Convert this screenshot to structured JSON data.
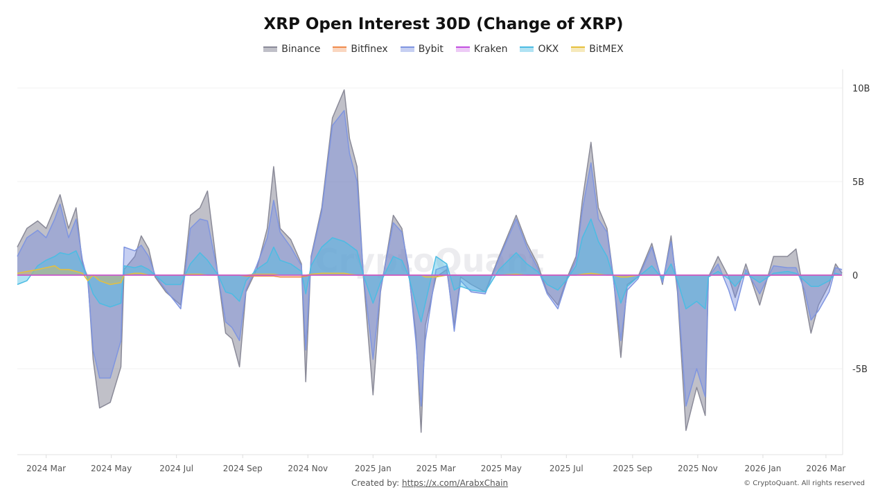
{
  "chart_data": {
    "type": "area",
    "title": "XRP Open Interest 30D (Change of XRP)",
    "xlabel": "",
    "ylabel": "",
    "y_unit": "B",
    "ylim": [
      -10,
      11
    ],
    "y_ticks": [
      {
        "v": 10,
        "label": "10B"
      },
      {
        "v": 5,
        "label": "5B"
      },
      {
        "v": 0,
        "label": "0"
      },
      {
        "v": -5,
        "label": "-5B"
      }
    ],
    "x_range": [
      "2024-02-03",
      "2026-03-16"
    ],
    "x_ticks": [
      {
        "d": "2024-03-01",
        "label": "2024 Mar"
      },
      {
        "d": "2024-05-01",
        "label": "2024 May"
      },
      {
        "d": "2024-07-01",
        "label": "2024 Jul"
      },
      {
        "d": "2024-09-01",
        "label": "2024 Sep"
      },
      {
        "d": "2024-11-01",
        "label": "2024 Nov"
      },
      {
        "d": "2025-01-01",
        "label": "2025 Jan"
      },
      {
        "d": "2025-03-01",
        "label": "2025 Mar"
      },
      {
        "d": "2025-05-01",
        "label": "2025 May"
      },
      {
        "d": "2025-07-01",
        "label": "2025 Jul"
      },
      {
        "d": "2025-09-01",
        "label": "2025 Sep"
      },
      {
        "d": "2025-11-01",
        "label": "2025 Nov"
      },
      {
        "d": "2026-01-01",
        "label": "2026 Jan"
      },
      {
        "d": "2026-03-01",
        "label": "2026 Mar"
      }
    ],
    "grid": true,
    "legend_position": "top",
    "y_axis_position": "right",
    "x": [
      "2024-02-03",
      "2024-02-12",
      "2024-02-22",
      "2024-03-01",
      "2024-03-09",
      "2024-03-14",
      "2024-03-22",
      "2024-03-29",
      "2024-04-04",
      "2024-04-09",
      "2024-04-14",
      "2024-04-20",
      "2024-04-30",
      "2024-05-10",
      "2024-05-13",
      "2024-05-23",
      "2024-05-29",
      "2024-06-05",
      "2024-06-11",
      "2024-06-21",
      "2024-07-05",
      "2024-07-14",
      "2024-07-23",
      "2024-07-30",
      "2024-08-09",
      "2024-08-16",
      "2024-08-22",
      "2024-08-29",
      "2024-09-04",
      "2024-09-14",
      "2024-09-24",
      "2024-09-30",
      "2024-10-06",
      "2024-10-16",
      "2024-10-26",
      "2024-10-30",
      "2024-11-04",
      "2024-11-14",
      "2024-11-24",
      "2024-12-05",
      "2024-12-10",
      "2024-12-17",
      "2024-12-23",
      "2025-01-01",
      "2025-01-08",
      "2025-01-20",
      "2025-01-28",
      "2025-02-03",
      "2025-02-10",
      "2025-02-15",
      "2025-02-19",
      "2025-03-01",
      "2025-03-11",
      "2025-03-18",
      "2025-03-24",
      "2025-04-03",
      "2025-04-16",
      "2025-04-29",
      "2025-05-15",
      "2025-05-25",
      "2025-06-04",
      "2025-06-13",
      "2025-06-23",
      "2025-07-02",
      "2025-07-10",
      "2025-07-16",
      "2025-07-24",
      "2025-07-31",
      "2025-08-08",
      "2025-08-14",
      "2025-08-21",
      "2025-08-27",
      "2025-09-06",
      "2025-09-19",
      "2025-09-29",
      "2025-10-07",
      "2025-10-13",
      "2025-10-21",
      "2025-10-31",
      "2025-11-08",
      "2025-11-11",
      "2025-11-20",
      "2025-11-30",
      "2025-12-06",
      "2025-12-16",
      "2025-12-29",
      "2026-01-11",
      "2026-01-24",
      "2026-02-01",
      "2026-02-09",
      "2026-02-15",
      "2026-02-22",
      "2026-03-04",
      "2026-03-10",
      "2026-03-16"
    ],
    "series": [
      {
        "name": "Binance",
        "color": "#8a8a98",
        "fill": "rgba(140,140,155,0.55)",
        "values": [
          1.5,
          2.5,
          2.9,
          2.5,
          3.6,
          4.3,
          2.5,
          3.6,
          0.6,
          -0.1,
          -4.5,
          -7.1,
          -6.8,
          -4.9,
          0.3,
          1.0,
          2.1,
          1.4,
          -0.1,
          -0.9,
          -1.6,
          3.2,
          3.6,
          4.5,
          -0.1,
          -3.1,
          -3.4,
          -4.9,
          -0.9,
          0.3,
          2.5,
          5.8,
          2.5,
          1.9,
          0.6,
          -5.7,
          1.0,
          3.6,
          8.4,
          9.9,
          7.3,
          5.8,
          -0.1,
          -6.4,
          -0.9,
          3.2,
          2.5,
          0.3,
          -3.1,
          -8.4,
          -2.7,
          -0.1,
          0.3,
          -2.7,
          -0.1,
          -0.5,
          -0.9,
          1.0,
          3.2,
          1.7,
          0.6,
          -0.9,
          -1.6,
          -0.1,
          1.0,
          4.0,
          7.1,
          3.6,
          2.5,
          -0.1,
          -4.4,
          -0.5,
          -0.1,
          1.7,
          -0.5,
          2.1,
          -0.9,
          -8.3,
          -6.0,
          -7.5,
          -0.1,
          1.0,
          -0.1,
          -1.2,
          0.6,
          -1.6,
          1.0,
          1.0,
          1.4,
          -1.2,
          -3.1,
          -1.6,
          -0.5,
          0.6,
          0.1
        ]
      },
      {
        "name": "Bitfinex",
        "color": "#f08a4b",
        "fill": "rgba(240,138,75,0.35)",
        "values": [
          0,
          0,
          0,
          0,
          0,
          0,
          0,
          0,
          0,
          0,
          0,
          0,
          0,
          0,
          0,
          0,
          0,
          0,
          0,
          0,
          0,
          0,
          0,
          0,
          0,
          0,
          0,
          0,
          -0.05,
          -0.05,
          -0.05,
          -0.05,
          -0.1,
          -0.1,
          -0.1,
          -0.05,
          0,
          0,
          0,
          0,
          0,
          0,
          0,
          0,
          0,
          0,
          0,
          0,
          0,
          0,
          0,
          0,
          0,
          0,
          0,
          0,
          0,
          0,
          0,
          0,
          0,
          0,
          0,
          0,
          0,
          0,
          0,
          0,
          0,
          0,
          0,
          0,
          0,
          0,
          0,
          0,
          0,
          0,
          0,
          0,
          0,
          0,
          0,
          0,
          0,
          0,
          0,
          0,
          0,
          0,
          0,
          0,
          0,
          0,
          0
        ]
      },
      {
        "name": "Bybit",
        "color": "#7f95e0",
        "fill": "rgba(120,140,225,0.42)",
        "values": [
          1.0,
          2.0,
          2.4,
          2.0,
          3.0,
          3.8,
          2.0,
          3.0,
          0.8,
          -0.3,
          -4.0,
          -5.5,
          -5.5,
          -3.5,
          1.5,
          1.3,
          1.6,
          1.0,
          0.0,
          -0.8,
          -1.8,
          2.5,
          3.0,
          2.9,
          0.0,
          -2.5,
          -2.8,
          -3.5,
          -0.8,
          0.5,
          2.0,
          4.0,
          2.3,
          1.5,
          0.5,
          -4.0,
          0.9,
          3.4,
          8.0,
          8.8,
          6.5,
          5.0,
          0.0,
          -4.5,
          -0.8,
          2.8,
          2.3,
          0.5,
          -3.5,
          -7.0,
          -3.5,
          0.3,
          0.5,
          -3.0,
          -0.3,
          -0.9,
          -1.0,
          0.9,
          3.0,
          1.5,
          0.4,
          -1.0,
          -1.8,
          -0.2,
          0.8,
          3.5,
          6.0,
          3.0,
          2.3,
          -0.2,
          -3.5,
          -0.8,
          -0.2,
          1.5,
          -0.4,
          1.8,
          -0.6,
          -7.0,
          -5.0,
          -6.5,
          -0.1,
          0.6,
          -0.8,
          -1.9,
          0.3,
          -1.0,
          0.5,
          0.4,
          0.4,
          -0.8,
          -2.4,
          -1.9,
          -0.9,
          0.4,
          0.3
        ]
      },
      {
        "name": "Kraken",
        "color": "#c24fe0",
        "fill": "rgba(194,79,224,0.3)",
        "values": [
          0,
          0,
          0,
          0,
          0,
          0,
          0,
          0,
          0,
          0,
          0,
          0,
          0,
          0,
          0,
          0,
          0,
          0,
          0,
          0,
          0,
          0,
          0,
          0,
          0,
          0,
          0,
          0,
          0,
          0,
          0,
          0,
          0,
          0,
          0,
          0,
          0,
          0,
          0,
          0,
          0,
          0,
          0,
          0,
          0,
          0,
          0,
          0,
          0,
          0,
          0,
          0,
          0,
          0,
          0,
          0,
          0,
          0,
          0,
          0,
          0,
          0,
          0,
          0,
          0,
          0,
          0,
          0,
          0,
          0,
          0,
          0,
          0,
          0,
          0,
          0,
          0,
          0,
          0,
          0,
          0,
          0,
          0,
          0,
          0,
          0,
          0,
          0,
          0,
          0,
          0,
          0,
          0,
          0,
          0
        ]
      },
      {
        "name": "OKX",
        "color": "#4cbce3",
        "fill": "rgba(80,190,228,0.45)",
        "values": [
          -0.5,
          -0.3,
          0.5,
          0.8,
          1.0,
          1.2,
          1.1,
          1.3,
          0.5,
          -0.2,
          -1.0,
          -1.5,
          -1.7,
          -1.5,
          0.5,
          0.4,
          0.5,
          0.3,
          0.0,
          -0.5,
          -0.5,
          0.6,
          1.2,
          0.8,
          0.0,
          -0.9,
          -1.0,
          -1.4,
          -0.3,
          0.3,
          0.7,
          1.5,
          0.8,
          0.6,
          0.2,
          -1.0,
          0.5,
          1.5,
          2.0,
          1.8,
          1.6,
          1.3,
          0.0,
          -1.5,
          -0.4,
          1.0,
          0.8,
          0.0,
          -1.5,
          -2.5,
          -1.5,
          1.0,
          0.6,
          -0.8,
          -0.6,
          -0.8,
          -0.9,
          0.3,
          1.2,
          0.6,
          0.2,
          -0.5,
          -0.8,
          -0.2,
          0.5,
          2.0,
          3.0,
          1.8,
          1.0,
          -0.1,
          -1.5,
          -0.6,
          -0.1,
          0.5,
          -0.2,
          0.6,
          -0.3,
          -1.8,
          -1.4,
          -1.8,
          -0.1,
          0.2,
          -0.2,
          -0.6,
          0.1,
          -0.4,
          0.1,
          0.2,
          0.1,
          -0.3,
          -0.6,
          -0.6,
          -0.3,
          0.1,
          0.0
        ]
      },
      {
        "name": "BitMEX",
        "color": "#e6c03c",
        "fill": "rgba(230,192,60,0.35)",
        "values": [
          0.1,
          0.2,
          0.3,
          0.4,
          0.5,
          0.3,
          0.3,
          0.2,
          0.1,
          -0.3,
          0.0,
          -0.3,
          -0.5,
          -0.4,
          0.0,
          0.1,
          0.1,
          0.0,
          0.0,
          0.0,
          0.0,
          0.05,
          0.05,
          0.0,
          0.0,
          0.0,
          0.0,
          0.0,
          0.0,
          0.05,
          0.05,
          0.05,
          0.0,
          0.0,
          0.0,
          0.0,
          0.05,
          0.1,
          0.1,
          0.1,
          0.05,
          0.0,
          0.0,
          0.0,
          0.0,
          0.0,
          0.0,
          0.0,
          0.0,
          0.0,
          -0.1,
          -0.1,
          0.0,
          0.0,
          0.0,
          0.0,
          0.0,
          0.0,
          0.05,
          0.0,
          0.0,
          0.0,
          0.0,
          0.0,
          0.0,
          0.05,
          0.1,
          0.05,
          0.0,
          0.0,
          -0.1,
          -0.1,
          0.0,
          0.0,
          0.0,
          0.0,
          0.0,
          0.0,
          0.0,
          0.0,
          0.0,
          0.0,
          0.0,
          0.0,
          0.0,
          0.0,
          0.0,
          0.0,
          0.0,
          0.0,
          0.0,
          0.0,
          0.0,
          0.0,
          0.0
        ]
      }
    ]
  },
  "watermark": "CryptoQuant",
  "footer": {
    "created_by_label": "Created by:",
    "created_by_link": "https://x.com/ArabxChain",
    "copyright": "© CryptoQuant. All rights reserved"
  }
}
